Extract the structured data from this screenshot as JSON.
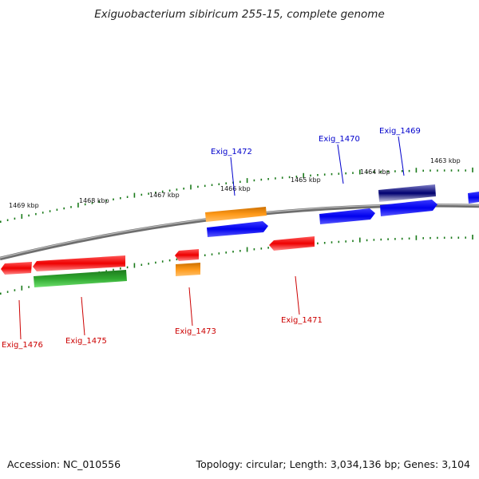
{
  "title": "Exiguobacterium sibiricum 255-15, complete genome",
  "footer": {
    "accession": "Accession: NC_010556",
    "summary": "Topology: circular; Length: 3,034,136 bp; Genes: 3,104"
  },
  "colors": {
    "backbone": "#777777",
    "tick": "#1a7a1a",
    "plus_label": "#0000cc",
    "minus_label": "#cc0000"
  },
  "tick_labels": [
    "1469 kbp",
    "1468 kbp",
    "1467 kbp",
    "1466 kbp",
    "1465 kbp",
    "1464 kbp",
    "1463 kbp"
  ],
  "genes": [
    {
      "label": "Exig_1472",
      "strand": "plus",
      "color": "#0000ee"
    },
    {
      "label": "Exig_1470",
      "strand": "plus",
      "color": "#0000ee"
    },
    {
      "label": "Exig_1469",
      "strand": "plus",
      "color": "#0000ee"
    },
    {
      "label": "Exig_1476",
      "strand": "minus",
      "color": "#ee0000"
    },
    {
      "label": "Exig_1475",
      "strand": "minus",
      "color": "#ee0000"
    },
    {
      "label": "Exig_1473",
      "strand": "minus",
      "color": "#ee0000"
    },
    {
      "label": "Exig_1471",
      "strand": "minus",
      "color": "#ee0000"
    }
  ]
}
